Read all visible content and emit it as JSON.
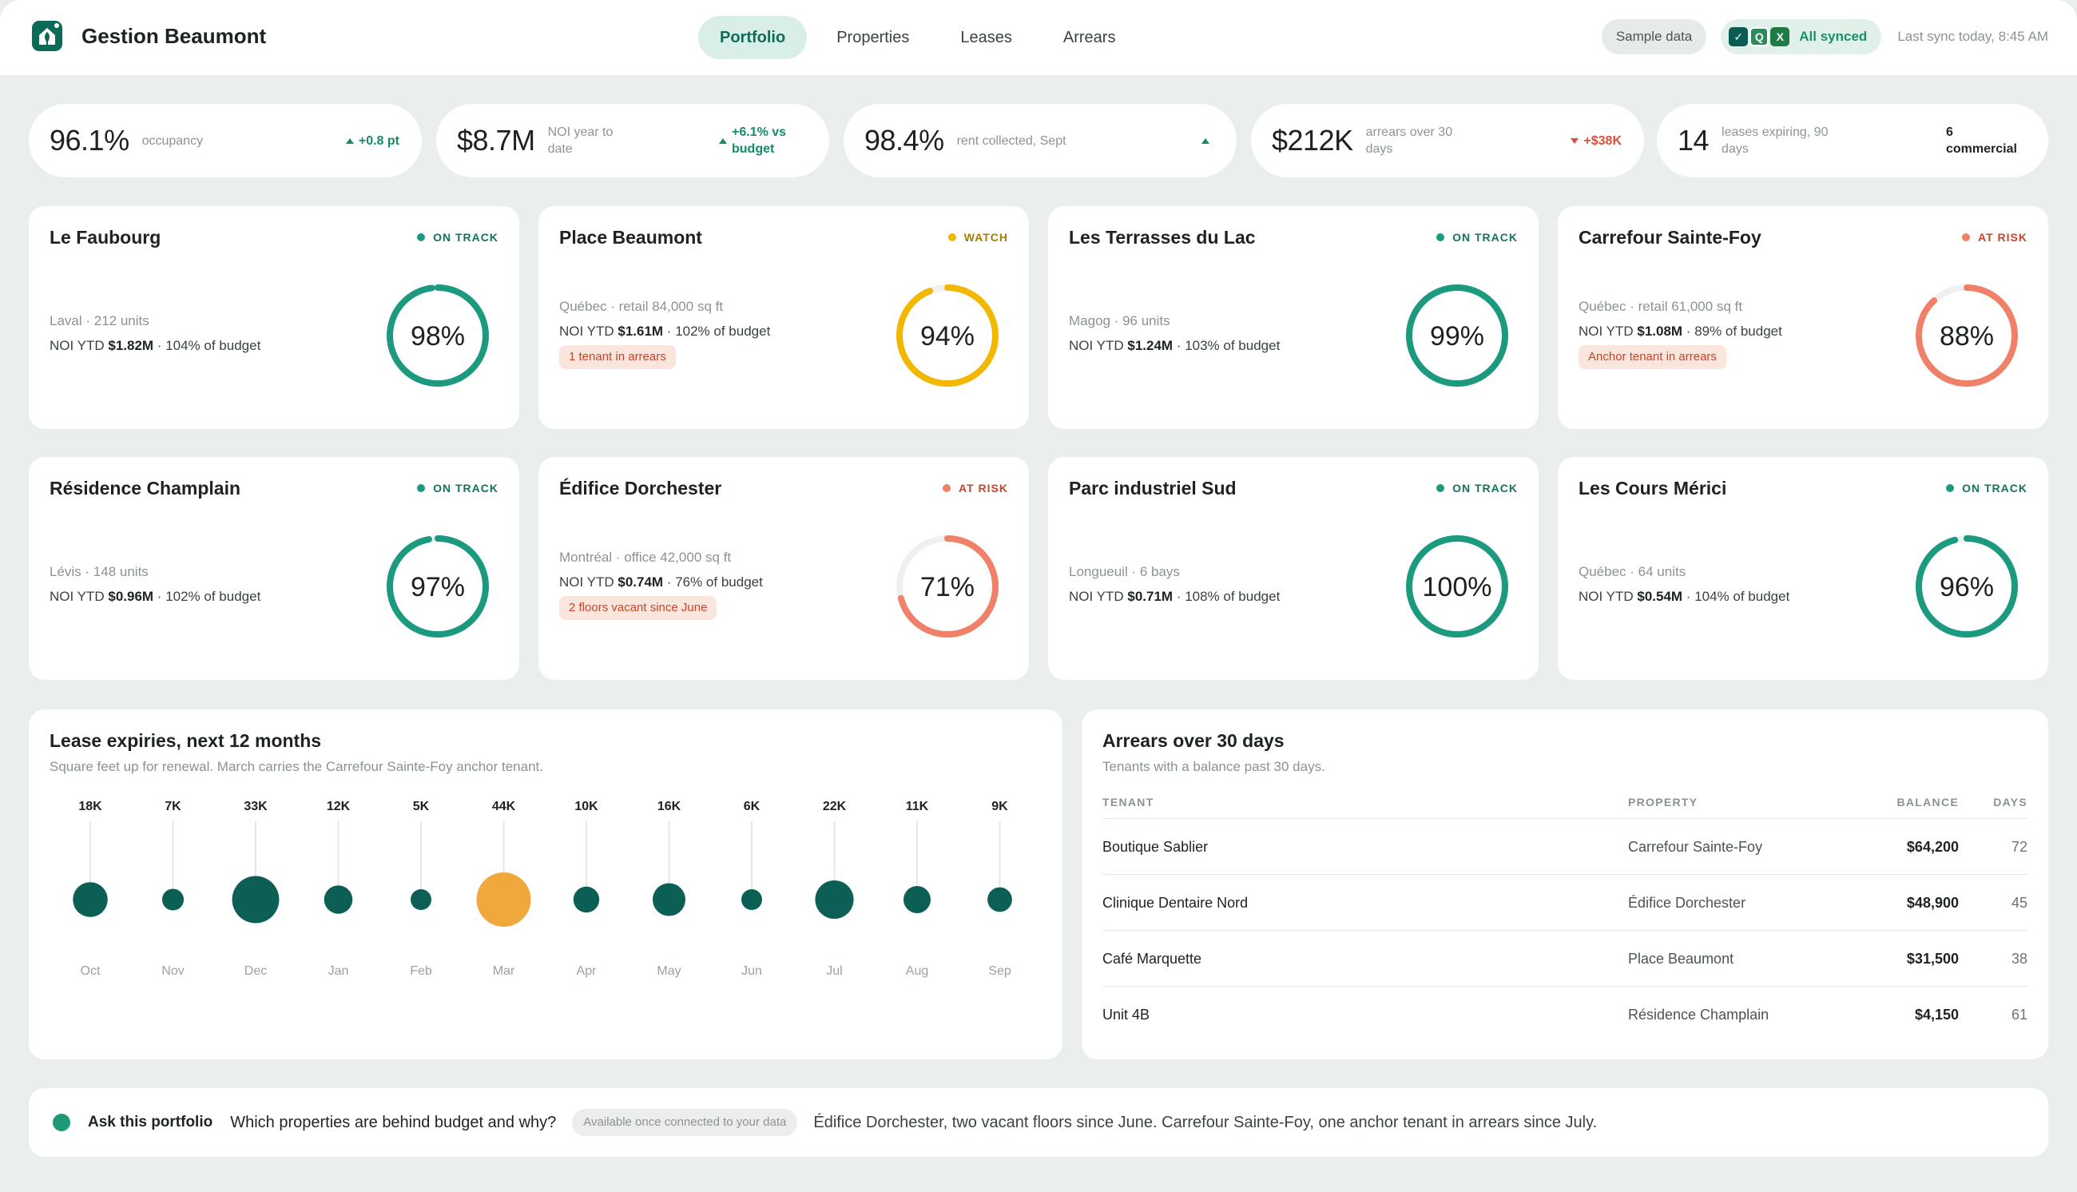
{
  "brand": {
    "name": "Gestion Beaumont",
    "logo_icon": "house-leaf-icon"
  },
  "nav": {
    "tabs": [
      {
        "label": "Portfolio",
        "active": true
      },
      {
        "label": "Properties",
        "active": false
      },
      {
        "label": "Leases",
        "active": false
      },
      {
        "label": "Arrears",
        "active": false
      }
    ]
  },
  "header": {
    "sample_label": "Sample data",
    "sync_label": "All synced",
    "last_sync": "Last sync today, 8:45 AM",
    "sync_icons": [
      "check-icon",
      "q-icon",
      "excel-icon"
    ]
  },
  "kpis": [
    {
      "value": "96.1%",
      "label": "occupancy",
      "delta": "+0.8 pt",
      "trend": "up"
    },
    {
      "value": "$8.7M",
      "label": "NOI year to date",
      "delta": "+6.1% vs budget",
      "trend": "up"
    },
    {
      "value": "98.4%",
      "label": "rent collected, Sept",
      "delta": "",
      "trend": "up"
    },
    {
      "value": "$212K",
      "label": "arrears over 30 days",
      "delta": "+$38K",
      "trend": "down"
    },
    {
      "value": "14",
      "label": "leases expiring, 90 days",
      "delta": "6 commercial",
      "trend": "neutral"
    }
  ],
  "properties": [
    {
      "name": "Le Faubourg",
      "status": "ON TRACK",
      "meta": "Laval · 212 units",
      "noi": "$1.82M",
      "budget": "104% of budget",
      "alert": "",
      "pct": 98,
      "pct_label": "98%"
    },
    {
      "name": "Place Beaumont",
      "status": "WATCH",
      "meta": "Québec · retail 84,000 sq ft",
      "noi": "$1.61M",
      "budget": "102% of budget",
      "alert": "1 tenant in arrears",
      "pct": 94,
      "pct_label": "94%"
    },
    {
      "name": "Les Terrasses du Lac",
      "status": "ON TRACK",
      "meta": "Magog · 96 units",
      "noi": "$1.24M",
      "budget": "103% of budget",
      "alert": "",
      "pct": 99,
      "pct_label": "99%"
    },
    {
      "name": "Carrefour Sainte-Foy",
      "status": "AT RISK",
      "meta": "Québec · retail 61,000 sq ft",
      "noi": "$1.08M",
      "budget": "89% of budget",
      "alert": "Anchor tenant in arrears",
      "pct": 88,
      "pct_label": "88%"
    },
    {
      "name": "Résidence Champlain",
      "status": "ON TRACK",
      "meta": "Lévis · 148 units",
      "noi": "$0.96M",
      "budget": "102% of budget",
      "alert": "",
      "pct": 97,
      "pct_label": "97%"
    },
    {
      "name": "Édifice Dorchester",
      "status": "AT RISK",
      "meta": "Montréal · office 42,000 sq ft",
      "noi": "$0.74M",
      "budget": "76% of budget",
      "alert": "2 floors vacant since June",
      "pct": 71,
      "pct_label": "71%"
    },
    {
      "name": "Parc industriel Sud",
      "status": "ON TRACK",
      "meta": "Longueuil · 6 bays",
      "noi": "$0.71M",
      "budget": "108% of budget",
      "alert": "",
      "pct": 100,
      "pct_label": "100%"
    },
    {
      "name": "Les Cours Mérici",
      "status": "ON TRACK",
      "meta": "Québec · 64 units",
      "noi": "$0.54M",
      "budget": "104% of budget",
      "alert": "",
      "pct": 96,
      "pct_label": "96%"
    }
  ],
  "common": {
    "noi_prefix": "NOI YTD"
  },
  "status_colors": {
    "ON TRACK": "#1c9a80",
    "WATCH": "#f2b800",
    "AT RISK": "#f08068"
  },
  "status_text_colors": {
    "ON TRACK": "#14735f",
    "WATCH": "#a57c00",
    "AT RISK": "#c4452b"
  },
  "expiries": {
    "title": "Lease expiries, next 12 months",
    "subtitle": "Square feet up for renewal. March carries the Carrefour Sainte-Foy anchor tenant.",
    "highlight_color": "#f0a83c",
    "base_color": "#0b5f55"
  },
  "chart_data": {
    "type": "scatter",
    "title": "Lease expiries, next 12 months",
    "categories": [
      "Oct",
      "Nov",
      "Dec",
      "Jan",
      "Feb",
      "Mar",
      "Apr",
      "May",
      "Jun",
      "Jul",
      "Aug",
      "Sep"
    ],
    "values": [
      18,
      7,
      33,
      12,
      5,
      44,
      10,
      16,
      6,
      22,
      11,
      9
    ],
    "labels": [
      "18K",
      "7K",
      "33K",
      "12K",
      "5K",
      "44K",
      "10K",
      "16K",
      "6K",
      "22K",
      "11K",
      "9K"
    ],
    "unit": "K sq ft",
    "highlight": "Mar"
  },
  "arrears": {
    "title": "Arrears over 30 days",
    "subtitle": "Tenants with a balance past 30 days.",
    "columns": [
      "TENANT",
      "PROPERTY",
      "BALANCE",
      "DAYS"
    ],
    "rows": [
      {
        "tenant": "Boutique Sablier",
        "property": "Carrefour Sainte-Foy",
        "balance": "$64,200",
        "days": "72"
      },
      {
        "tenant": "Clinique Dentaire Nord",
        "property": "Édifice Dorchester",
        "balance": "$48,900",
        "days": "45"
      },
      {
        "tenant": "Café Marquette",
        "property": "Place Beaumont",
        "balance": "$31,500",
        "days": "38"
      },
      {
        "tenant": "Unit 4B",
        "property": "Résidence Champlain",
        "balance": "$4,150",
        "days": "61"
      }
    ]
  },
  "ask": {
    "label": "Ask this portfolio",
    "question": "Which properties are behind budget and why?",
    "pill": "Available once connected to your data",
    "answer": "Édifice Dorchester, two vacant floors since June. Carrefour Sainte-Foy, one anchor tenant in arrears since July."
  }
}
